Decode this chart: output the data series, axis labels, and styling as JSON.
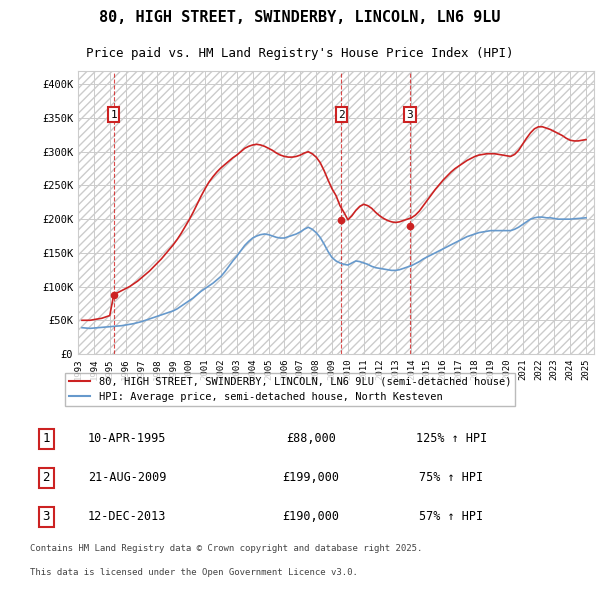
{
  "title": "80, HIGH STREET, SWINDERBY, LINCOLN, LN6 9LU",
  "subtitle": "Price paid vs. HM Land Registry's House Price Index (HPI)",
  "title_fontsize": 11,
  "subtitle_fontsize": 9,
  "sale_dates": [
    "1995-04-10",
    "2009-08-21",
    "2013-12-12"
  ],
  "sale_prices": [
    88000,
    199000,
    190000
  ],
  "sale_labels": [
    "1",
    "2",
    "3"
  ],
  "sale_label_details": [
    {
      "num": "1",
      "date": "10-APR-1995",
      "price": "£88,000",
      "hpi": "125% ↑ HPI"
    },
    {
      "num": "2",
      "date": "21-AUG-2009",
      "price": "£199,000",
      "hpi": "75% ↑ HPI"
    },
    {
      "num": "3",
      "date": "12-DEC-2013",
      "price": "£190,000",
      "hpi": "57% ↑ HPI"
    }
  ],
  "hpi_line_color": "#6699cc",
  "price_line_color": "#cc2222",
  "vline_color": "#cc0000",
  "legend1": "80, HIGH STREET, SWINDERBY, LINCOLN, LN6 9LU (semi-detached house)",
  "legend2": "HPI: Average price, semi-detached house, North Kesteven",
  "footer1": "Contains HM Land Registry data © Crown copyright and database right 2025.",
  "footer2": "This data is licensed under the Open Government Licence v3.0.",
  "ylim": [
    0,
    420000
  ],
  "yticks": [
    0,
    50000,
    100000,
    150000,
    200000,
    250000,
    300000,
    350000,
    400000
  ],
  "ytick_labels": [
    "£0",
    "£50K",
    "£100K",
    "£150K",
    "£200K",
    "£250K",
    "£300K",
    "£350K",
    "£400K"
  ],
  "xlim_start": 1993.0,
  "xlim_end": 2025.5,
  "background_hatch_color": "#e8e8e8",
  "grid_color": "#cccccc",
  "hpi_data": {
    "years": [
      1993.25,
      1993.5,
      1993.75,
      1994.0,
      1994.25,
      1994.5,
      1994.75,
      1995.0,
      1995.25,
      1995.5,
      1995.75,
      1996.0,
      1996.25,
      1996.5,
      1996.75,
      1997.0,
      1997.25,
      1997.5,
      1997.75,
      1998.0,
      1998.25,
      1998.5,
      1998.75,
      1999.0,
      1999.25,
      1999.5,
      1999.75,
      2000.0,
      2000.25,
      2000.5,
      2000.75,
      2001.0,
      2001.25,
      2001.5,
      2001.75,
      2002.0,
      2002.25,
      2002.5,
      2002.75,
      2003.0,
      2003.25,
      2003.5,
      2003.75,
      2004.0,
      2004.25,
      2004.5,
      2004.75,
      2005.0,
      2005.25,
      2005.5,
      2005.75,
      2006.0,
      2006.25,
      2006.5,
      2006.75,
      2007.0,
      2007.25,
      2007.5,
      2007.75,
      2008.0,
      2008.25,
      2008.5,
      2008.75,
      2009.0,
      2009.25,
      2009.5,
      2009.75,
      2010.0,
      2010.25,
      2010.5,
      2010.75,
      2011.0,
      2011.25,
      2011.5,
      2011.75,
      2012.0,
      2012.25,
      2012.5,
      2012.75,
      2013.0,
      2013.25,
      2013.5,
      2013.75,
      2014.0,
      2014.25,
      2014.5,
      2014.75,
      2015.0,
      2015.25,
      2015.5,
      2015.75,
      2016.0,
      2016.25,
      2016.5,
      2016.75,
      2017.0,
      2017.25,
      2017.5,
      2017.75,
      2018.0,
      2018.25,
      2018.5,
      2018.75,
      2019.0,
      2019.25,
      2019.5,
      2019.75,
      2020.0,
      2020.25,
      2020.5,
      2020.75,
      2021.0,
      2021.25,
      2021.5,
      2021.75,
      2022.0,
      2022.25,
      2022.5,
      2022.75,
      2023.0,
      2023.25,
      2023.5,
      2023.75,
      2024.0,
      2024.25,
      2024.5,
      2024.75,
      2025.0
    ],
    "values": [
      39000,
      38500,
      38000,
      38500,
      39000,
      39500,
      40000,
      40500,
      41000,
      41500,
      42000,
      43000,
      44000,
      45000,
      46500,
      48000,
      50000,
      52000,
      54000,
      56000,
      58000,
      60000,
      62000,
      64000,
      67000,
      71000,
      75000,
      79000,
      83000,
      88000,
      93000,
      97000,
      101000,
      105000,
      110000,
      115000,
      122000,
      130000,
      138000,
      145000,
      153000,
      161000,
      167000,
      172000,
      175000,
      177000,
      178000,
      177000,
      175000,
      173000,
      172000,
      172000,
      174000,
      176000,
      178000,
      181000,
      185000,
      188000,
      185000,
      180000,
      173000,
      163000,
      152000,
      143000,
      138000,
      135000,
      133000,
      132000,
      135000,
      138000,
      137000,
      135000,
      133000,
      130000,
      128000,
      127000,
      126000,
      125000,
      124000,
      124000,
      125000,
      127000,
      129000,
      131000,
      134000,
      137000,
      141000,
      144000,
      147000,
      150000,
      153000,
      156000,
      159000,
      162000,
      165000,
      168000,
      171000,
      174000,
      176000,
      178000,
      180000,
      181000,
      182000,
      183000,
      183000,
      183000,
      183000,
      183000,
      183000,
      185000,
      188000,
      192000,
      196000,
      200000,
      202000,
      203000,
      203000,
      202000,
      202000,
      201000,
      200000,
      200000,
      200000,
      200000,
      200500,
      201000,
      201500,
      202000
    ]
  },
  "price_data": {
    "years": [
      1993.25,
      1993.5,
      1993.75,
      1994.0,
      1994.25,
      1994.5,
      1994.75,
      1995.0,
      1995.25,
      1995.5,
      1995.75,
      1996.0,
      1996.25,
      1996.5,
      1996.75,
      1997.0,
      1997.25,
      1997.5,
      1997.75,
      1998.0,
      1998.25,
      1998.5,
      1998.75,
      1999.0,
      1999.25,
      1999.5,
      1999.75,
      2000.0,
      2000.25,
      2000.5,
      2000.75,
      2001.0,
      2001.25,
      2001.5,
      2001.75,
      2002.0,
      2002.25,
      2002.5,
      2002.75,
      2003.0,
      2003.25,
      2003.5,
      2003.75,
      2004.0,
      2004.25,
      2004.5,
      2004.75,
      2005.0,
      2005.25,
      2005.5,
      2005.75,
      2006.0,
      2006.25,
      2006.5,
      2006.75,
      2007.0,
      2007.25,
      2007.5,
      2007.75,
      2008.0,
      2008.25,
      2008.5,
      2008.75,
      2009.0,
      2009.25,
      2009.5,
      2009.75,
      2010.0,
      2010.25,
      2010.5,
      2010.75,
      2011.0,
      2011.25,
      2011.5,
      2011.75,
      2012.0,
      2012.25,
      2012.5,
      2012.75,
      2013.0,
      2013.25,
      2013.5,
      2013.75,
      2014.0,
      2014.25,
      2014.5,
      2014.75,
      2015.0,
      2015.25,
      2015.5,
      2015.75,
      2016.0,
      2016.25,
      2016.5,
      2016.75,
      2017.0,
      2017.25,
      2017.5,
      2017.75,
      2018.0,
      2018.25,
      2018.5,
      2018.75,
      2019.0,
      2019.25,
      2019.5,
      2019.75,
      2020.0,
      2020.25,
      2020.5,
      2020.75,
      2021.0,
      2021.25,
      2021.5,
      2021.75,
      2022.0,
      2022.25,
      2022.5,
      2022.75,
      2023.0,
      2023.25,
      2023.5,
      2023.75,
      2024.0,
      2024.25,
      2024.5,
      2024.75,
      2025.0
    ],
    "values": [
      50000,
      50000,
      50000,
      51000,
      52000,
      53000,
      55000,
      57000,
      88000,
      91000,
      94000,
      97000,
      100000,
      104000,
      108000,
      113000,
      118000,
      123000,
      129000,
      135000,
      141000,
      148000,
      155000,
      162000,
      170000,
      179000,
      189000,
      199000,
      210000,
      222000,
      234000,
      245000,
      255000,
      263000,
      270000,
      276000,
      281000,
      286000,
      291000,
      295000,
      300000,
      305000,
      308000,
      310000,
      311000,
      310000,
      308000,
      305000,
      302000,
      298000,
      295000,
      293000,
      292000,
      292000,
      293000,
      295000,
      298000,
      300000,
      297000,
      292000,
      284000,
      272000,
      258000,
      245000,
      235000,
      220000,
      210000,
      199000,
      205000,
      213000,
      219000,
      222000,
      220000,
      216000,
      210000,
      205000,
      201000,
      198000,
      196000,
      195000,
      196000,
      198000,
      200000,
      202000,
      206000,
      212000,
      220000,
      228000,
      236000,
      244000,
      251000,
      258000,
      264000,
      270000,
      275000,
      279000,
      283000,
      287000,
      290000,
      293000,
      295000,
      296000,
      297000,
      297000,
      297000,
      296000,
      295000,
      294000,
      293000,
      296000,
      302000,
      311000,
      320000,
      328000,
      334000,
      337000,
      337000,
      335000,
      333000,
      330000,
      327000,
      324000,
      320000,
      317000,
      316000,
      316000,
      317000,
      318000
    ]
  }
}
